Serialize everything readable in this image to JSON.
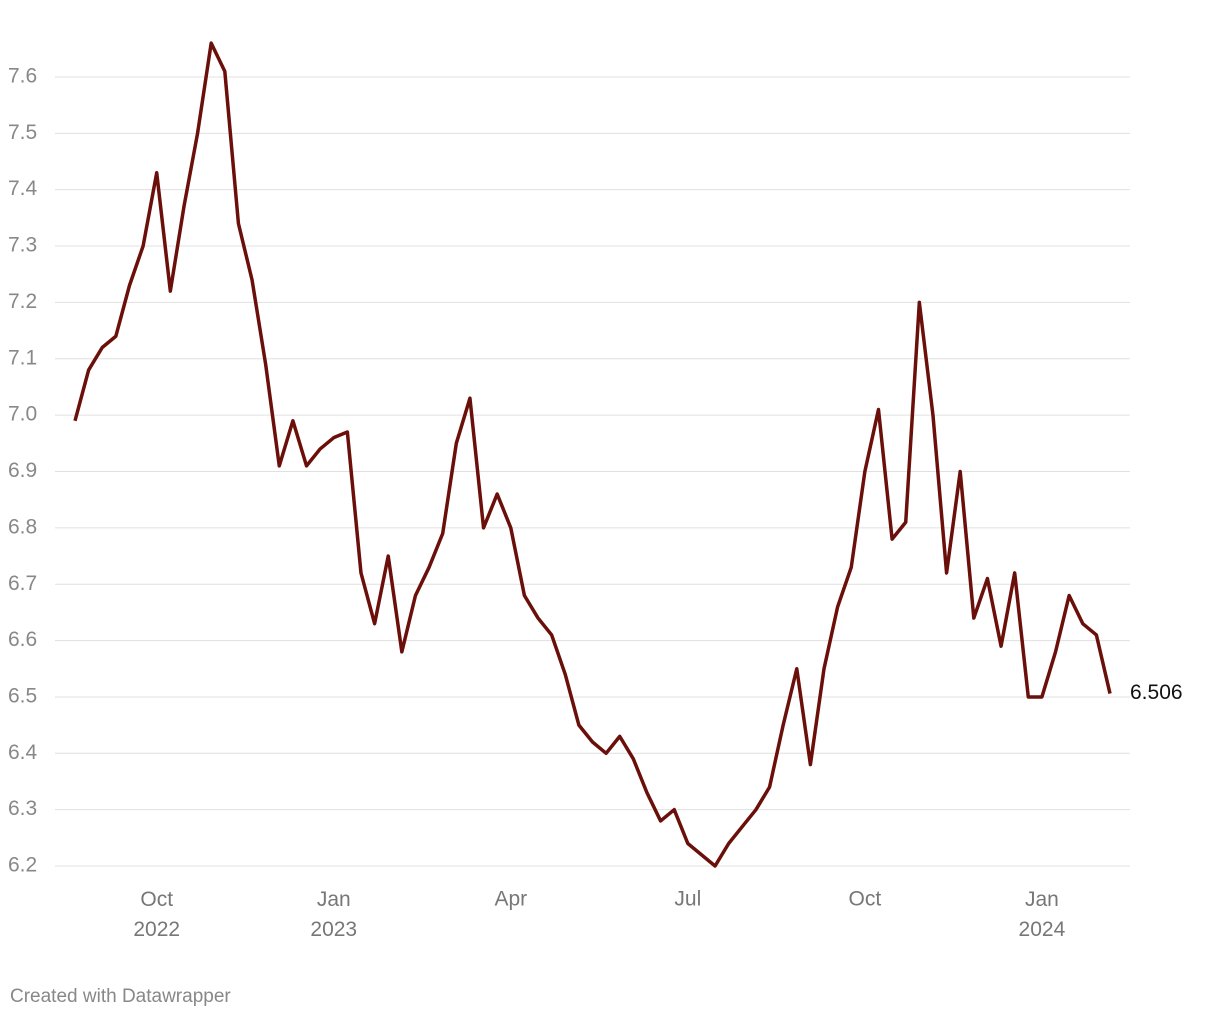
{
  "chart_data": {
    "type": "line",
    "categories": [
      null,
      null,
      null,
      null,
      null,
      null,
      "Oct 2022",
      null,
      null,
      null,
      null,
      null,
      null,
      null,
      null,
      null,
      null,
      null,
      null,
      "Jan 2023",
      null,
      null,
      null,
      null,
      null,
      null,
      null,
      null,
      null,
      null,
      null,
      null,
      "Apr",
      null,
      null,
      null,
      null,
      null,
      null,
      null,
      null,
      null,
      null,
      null,
      null,
      "Jul",
      null,
      null,
      null,
      null,
      null,
      null,
      null,
      null,
      null,
      null,
      null,
      null,
      "Oct",
      null,
      null,
      null,
      null,
      null,
      null,
      null,
      null,
      null,
      null,
      null,
      null,
      "Jan 2024",
      null,
      null,
      null,
      null,
      null
    ],
    "series": [
      {
        "color": "#6b0f0a",
        "values": [
          6.99,
          7.08,
          7.12,
          7.14,
          7.23,
          7.3,
          7.43,
          7.22,
          7.37,
          7.5,
          7.66,
          7.61,
          7.34,
          7.24,
          7.09,
          6.91,
          6.99,
          6.91,
          6.94,
          6.96,
          6.97,
          6.72,
          6.63,
          6.75,
          6.58,
          6.68,
          6.73,
          6.79,
          6.95,
          7.03,
          6.8,
          6.86,
          6.8,
          6.68,
          6.64,
          6.61,
          6.54,
          6.45,
          6.42,
          6.4,
          6.43,
          6.39,
          6.33,
          6.28,
          6.3,
          6.24,
          6.22,
          6.2,
          6.24,
          6.27,
          6.3,
          6.34,
          6.45,
          6.55,
          6.38,
          6.55,
          6.66,
          6.73,
          6.9,
          7.01,
          6.78,
          6.81,
          7.2,
          7.0,
          6.72,
          6.9,
          6.64,
          6.71,
          6.59,
          6.72,
          6.5,
          6.5,
          6.58,
          6.68,
          6.63,
          6.61,
          6.506
        ]
      }
    ],
    "ylim": [
      6.18,
      7.7
    ],
    "yticks": [
      6.2,
      6.3,
      6.4,
      6.5,
      6.6,
      6.7,
      6.8,
      6.9,
      {
        "value": 7.0,
        "label": "7.0"
      },
      7.1,
      7.2,
      7.3,
      7.4,
      7.5,
      7.6
    ],
    "grid": true,
    "footer": "Created with Datawrapper"
  }
}
